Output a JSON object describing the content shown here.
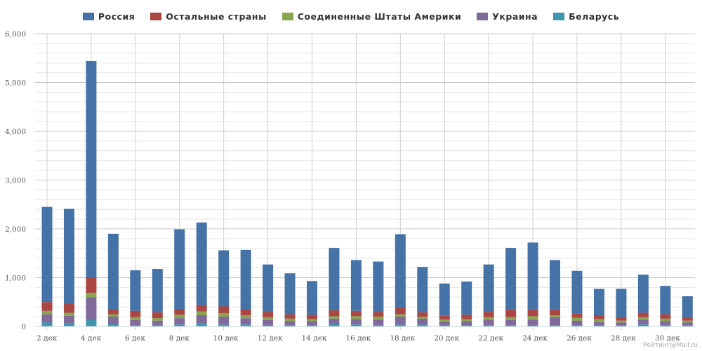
{
  "chart_data": {
    "type": "bar",
    "stacked": true,
    "categories": [
      "2 дек",
      "3 дек",
      "4 дек",
      "5 дек",
      "6 дек",
      "7 дек",
      "8 дек",
      "9 дек",
      "10 дек",
      "11 дек",
      "12 дек",
      "13 дек",
      "14 дек",
      "15 дек",
      "16 дек",
      "17 дек",
      "18 дек",
      "19 дек",
      "20 дек",
      "21 дек",
      "22 дек",
      "23 дек",
      "24 дек",
      "25 дек",
      "26 дек",
      "27 дек",
      "28 дек",
      "29 дек",
      "30 дек",
      "31 дек"
    ],
    "x_tick_labels": [
      "2 дек",
      "4 дек",
      "6 дек",
      "8 дек",
      "10 дек",
      "12 дек",
      "14 дек",
      "16 дек",
      "18 дек",
      "20 дек",
      "22 дек",
      "24 дек",
      "26 дек",
      "28 дек",
      "30 дек"
    ],
    "series": [
      {
        "name": "Беларусь",
        "color": "#3d96ae",
        "values": [
          80,
          60,
          130,
          50,
          30,
          30,
          40,
          60,
          40,
          40,
          30,
          30,
          30,
          50,
          40,
          30,
          40,
          40,
          20,
          20,
          30,
          30,
          30,
          20,
          30,
          20,
          20,
          40,
          30,
          20
        ]
      },
      {
        "name": "Украина",
        "color": "#80699b",
        "values": [
          170,
          160,
          470,
          150,
          100,
          90,
          130,
          170,
          160,
          130,
          100,
          80,
          80,
          110,
          110,
          110,
          160,
          120,
          80,
          90,
          110,
          100,
          110,
          170,
          90,
          70,
          60,
          100,
          80,
          60
        ]
      },
      {
        "name": "Соединенные Штаты Америки",
        "color": "#89a54e",
        "values": [
          70,
          60,
          90,
          50,
          60,
          50,
          70,
          80,
          70,
          60,
          60,
          50,
          40,
          50,
          60,
          60,
          50,
          40,
          40,
          40,
          50,
          60,
          70,
          40,
          60,
          60,
          40,
          50,
          50,
          40
        ]
      },
      {
        "name": "Остальные страны",
        "color": "#aa4643",
        "values": [
          180,
          180,
          310,
          110,
          130,
          120,
          120,
          130,
          140,
          130,
          110,
          90,
          90,
          120,
          110,
          100,
          130,
          90,
          80,
          90,
          110,
          160,
          130,
          110,
          90,
          80,
          70,
          90,
          90,
          70
        ]
      },
      {
        "name": "Россия",
        "color": "#4572a7",
        "values": [
          1950,
          1950,
          4440,
          1540,
          830,
          890,
          1630,
          1690,
          1150,
          1210,
          970,
          840,
          690,
          1280,
          1040,
          1030,
          1510,
          930,
          660,
          680,
          970,
          1260,
          1380,
          1020,
          870,
          540,
          580,
          780,
          580,
          430
        ]
      }
    ],
    "legend_order": [
      "Россия",
      "Остальные страны",
      "Соединенные Штаты Америки",
      "Украина",
      "Беларусь"
    ],
    "y_ticks": [
      0,
      1000,
      2000,
      3000,
      4000,
      5000,
      6000
    ],
    "y_tick_labels": [
      "0",
      "1,000",
      "2,000",
      "3,000",
      "4,000",
      "5,000",
      "6,000"
    ],
    "ylim": [
      0,
      6000
    ],
    "grid": true,
    "legend_position": "top-center",
    "xlabel": "",
    "ylabel": "",
    "title": ""
  },
  "watermark": "Рейтинг@Mail.ru"
}
